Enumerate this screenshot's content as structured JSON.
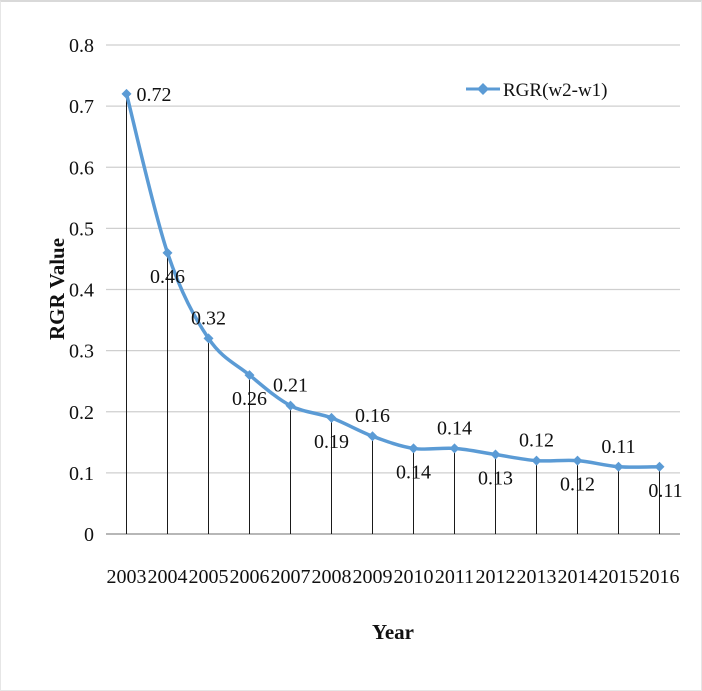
{
  "chart_data": {
    "type": "line",
    "title": "",
    "xlabel": "Year",
    "ylabel": "RGR Value",
    "ylim": [
      0,
      0.8
    ],
    "yticks": [
      "0",
      "0.1",
      "0.2",
      "0.3",
      "0.4",
      "0.5",
      "0.6",
      "0.7",
      "0.8"
    ],
    "grid": true,
    "drop_lines": true,
    "legend_position": "top-right",
    "categories": [
      "2003",
      "2004",
      "2005",
      "2006",
      "2007",
      "2008",
      "2009",
      "2010",
      "2011",
      "2012",
      "2013",
      "2014",
      "2015",
      "2016"
    ],
    "series": [
      {
        "name": "RGR(w2-w1)",
        "color": "#5b9bd5",
        "marker": "diamond",
        "values": [
          0.72,
          0.46,
          0.32,
          0.26,
          0.21,
          0.19,
          0.16,
          0.14,
          0.14,
          0.13,
          0.12,
          0.12,
          0.11,
          0.11
        ],
        "labels": [
          "0.72",
          "0.46",
          "0.32",
          "0.26",
          "0.21",
          "0.19",
          "0.16",
          "0.14",
          "0.14",
          "0.13",
          "0.12",
          "0.12",
          "0.11",
          "0.11"
        ]
      }
    ]
  }
}
